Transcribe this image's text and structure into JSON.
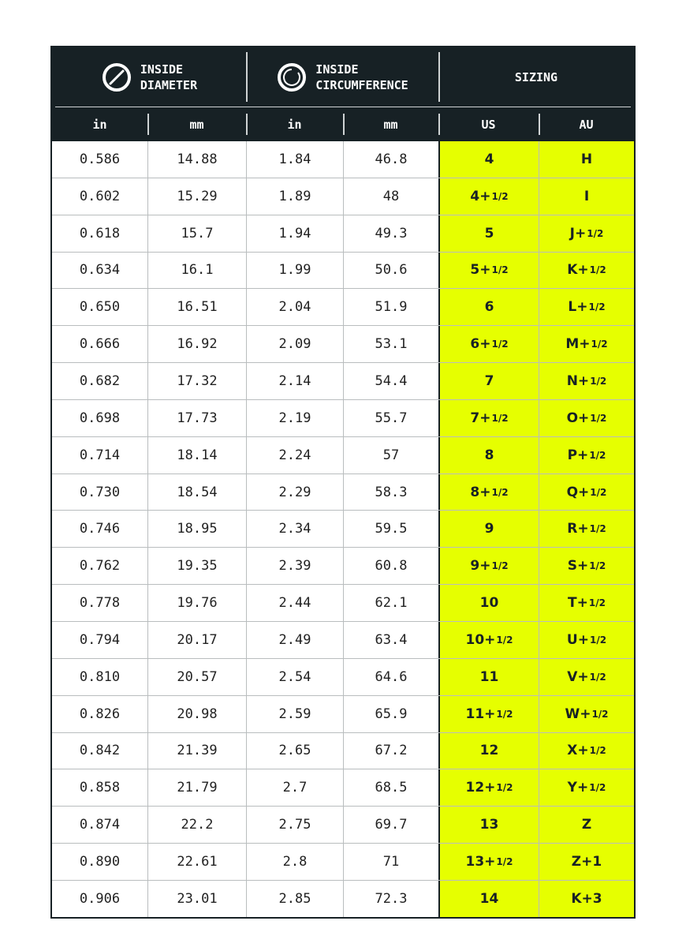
{
  "header": {
    "groups": [
      {
        "line1": "INSIDE",
        "line2": "DIAMETER",
        "icon": "diameter-icon"
      },
      {
        "line1": "INSIDE",
        "line2": "CIRCUMFERENCE",
        "icon": "circumference-icon"
      },
      {
        "line1": "SIZING",
        "line2": ""
      }
    ],
    "units": [
      "in",
      "mm",
      "in",
      "mm",
      "US",
      "AU"
    ]
  },
  "colors": {
    "header_bg": "#172125",
    "sizing_bg": "#e6ff00"
  },
  "rows": [
    {
      "d_in": "0.586",
      "d_mm": "14.88",
      "c_in": "1.84",
      "c_mm": "46.8",
      "us": {
        "main": "4",
        "frac": ""
      },
      "au": {
        "main": "H",
        "frac": ""
      }
    },
    {
      "d_in": "0.602",
      "d_mm": "15.29",
      "c_in": "1.89",
      "c_mm": "48",
      "us": {
        "main": "4+",
        "frac": "1/2"
      },
      "au": {
        "main": "I",
        "frac": ""
      }
    },
    {
      "d_in": "0.618",
      "d_mm": "15.7",
      "c_in": "1.94",
      "c_mm": "49.3",
      "us": {
        "main": "5",
        "frac": ""
      },
      "au": {
        "main": "J+",
        "frac": "1/2"
      }
    },
    {
      "d_in": "0.634",
      "d_mm": "16.1",
      "c_in": "1.99",
      "c_mm": "50.6",
      "us": {
        "main": "5+",
        "frac": "1/2"
      },
      "au": {
        "main": "K+",
        "frac": "1/2"
      }
    },
    {
      "d_in": "0.650",
      "d_mm": "16.51",
      "c_in": "2.04",
      "c_mm": "51.9",
      "us": {
        "main": "6",
        "frac": ""
      },
      "au": {
        "main": "L+",
        "frac": "1/2"
      }
    },
    {
      "d_in": "0.666",
      "d_mm": "16.92",
      "c_in": "2.09",
      "c_mm": "53.1",
      "us": {
        "main": "6+",
        "frac": "1/2"
      },
      "au": {
        "main": "M+",
        "frac": "1/2"
      }
    },
    {
      "d_in": "0.682",
      "d_mm": "17.32",
      "c_in": "2.14",
      "c_mm": "54.4",
      "us": {
        "main": "7",
        "frac": ""
      },
      "au": {
        "main": "N+",
        "frac": "1/2"
      }
    },
    {
      "d_in": "0.698",
      "d_mm": "17.73",
      "c_in": "2.19",
      "c_mm": "55.7",
      "us": {
        "main": "7+",
        "frac": "1/2"
      },
      "au": {
        "main": "O+",
        "frac": "1/2"
      }
    },
    {
      "d_in": "0.714",
      "d_mm": "18.14",
      "c_in": "2.24",
      "c_mm": "57",
      "us": {
        "main": "8",
        "frac": ""
      },
      "au": {
        "main": "P+",
        "frac": "1/2"
      }
    },
    {
      "d_in": "0.730",
      "d_mm": "18.54",
      "c_in": "2.29",
      "c_mm": "58.3",
      "us": {
        "main": "8+",
        "frac": "1/2"
      },
      "au": {
        "main": "Q+",
        "frac": "1/2"
      }
    },
    {
      "d_in": "0.746",
      "d_mm": "18.95",
      "c_in": "2.34",
      "c_mm": "59.5",
      "us": {
        "main": "9",
        "frac": ""
      },
      "au": {
        "main": "R+",
        "frac": "1/2"
      }
    },
    {
      "d_in": "0.762",
      "d_mm": "19.35",
      "c_in": "2.39",
      "c_mm": "60.8",
      "us": {
        "main": "9+",
        "frac": "1/2"
      },
      "au": {
        "main": "S+",
        "frac": "1/2"
      }
    },
    {
      "d_in": "0.778",
      "d_mm": "19.76",
      "c_in": "2.44",
      "c_mm": "62.1",
      "us": {
        "main": "10",
        "frac": ""
      },
      "au": {
        "main": "T+",
        "frac": "1/2"
      }
    },
    {
      "d_in": "0.794",
      "d_mm": "20.17",
      "c_in": "2.49",
      "c_mm": "63.4",
      "us": {
        "main": "10+",
        "frac": "1/2"
      },
      "au": {
        "main": "U+",
        "frac": "1/2"
      }
    },
    {
      "d_in": "0.810",
      "d_mm": "20.57",
      "c_in": "2.54",
      "c_mm": "64.6",
      "us": {
        "main": "11",
        "frac": ""
      },
      "au": {
        "main": "V+",
        "frac": "1/2"
      }
    },
    {
      "d_in": "0.826",
      "d_mm": "20.98",
      "c_in": "2.59",
      "c_mm": "65.9",
      "us": {
        "main": "11+",
        "frac": "1/2"
      },
      "au": {
        "main": "W+",
        "frac": "1/2"
      }
    },
    {
      "d_in": "0.842",
      "d_mm": "21.39",
      "c_in": "2.65",
      "c_mm": "67.2",
      "us": {
        "main": "12",
        "frac": ""
      },
      "au": {
        "main": "X+",
        "frac": "1/2"
      }
    },
    {
      "d_in": "0.858",
      "d_mm": "21.79",
      "c_in": "2.7",
      "c_mm": "68.5",
      "us": {
        "main": "12+",
        "frac": "1/2"
      },
      "au": {
        "main": "Y+",
        "frac": "1/2"
      }
    },
    {
      "d_in": "0.874",
      "d_mm": "22.2",
      "c_in": "2.75",
      "c_mm": "69.7",
      "us": {
        "main": "13",
        "frac": ""
      },
      "au": {
        "main": "Z",
        "frac": ""
      }
    },
    {
      "d_in": "0.890",
      "d_mm": "22.61",
      "c_in": "2.8",
      "c_mm": "71",
      "us": {
        "main": "13+",
        "frac": "1/2"
      },
      "au": {
        "main": "Z+1",
        "frac": ""
      }
    },
    {
      "d_in": "0.906",
      "d_mm": "23.01",
      "c_in": "2.85",
      "c_mm": "72.3",
      "us": {
        "main": "14",
        "frac": ""
      },
      "au": {
        "main": "K+3",
        "frac": ""
      }
    }
  ]
}
